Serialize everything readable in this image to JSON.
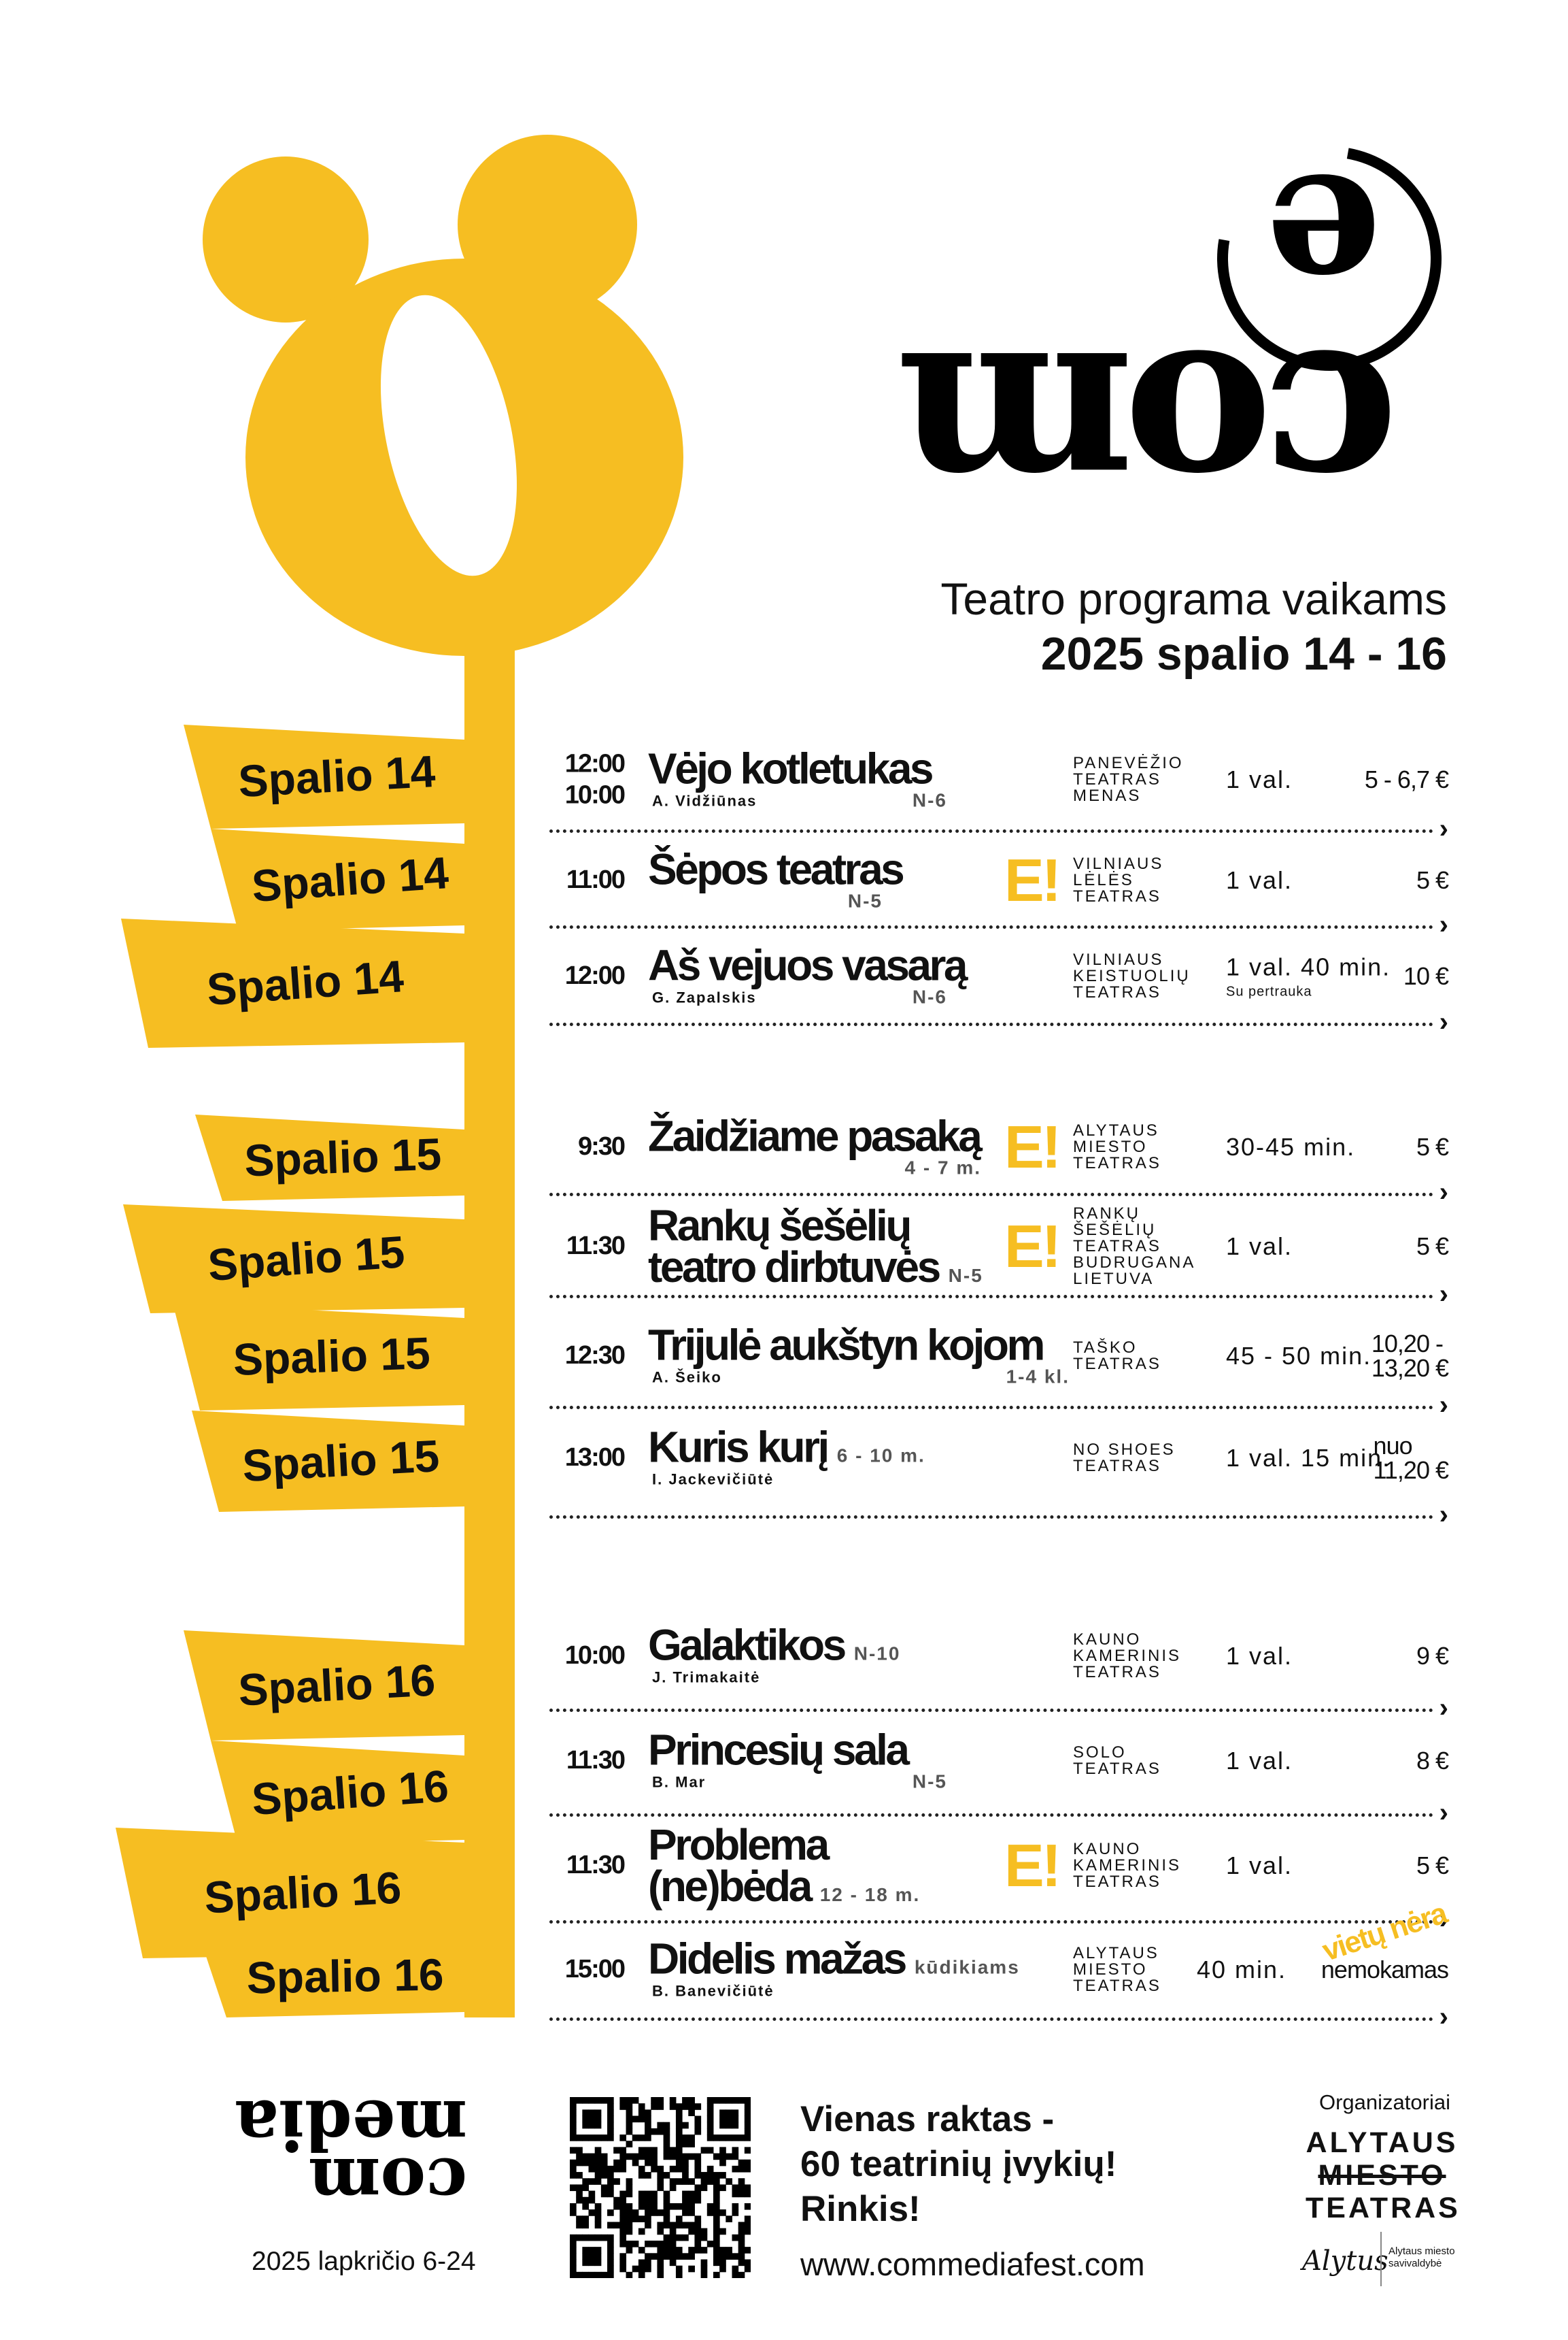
{
  "colors": {
    "accent": "#f6be22",
    "text": "#111111"
  },
  "header": {
    "logo_text": "com e",
    "subtitle": "Teatro programa vaikams",
    "dates": "2025 spalio 14 - 16"
  },
  "flags": [
    "Spalio 14",
    "Spalio 14",
    "Spalio 14",
    "Spalio 15",
    "Spalio 15",
    "Spalio 15",
    "Spalio 15",
    "Spalio 16",
    "Spalio 16",
    "Spalio 16",
    "Spalio 16"
  ],
  "events": [
    {
      "time": "12:00\n10:00",
      "title": [
        "Vėjo kotletukas"
      ],
      "author": "A. Vidžiūnas",
      "age": "N-6",
      "e_badge": false,
      "theatre": [
        "PANEVĖŽIO",
        "TEATRAS",
        "MENAS"
      ],
      "duration": "1 val.",
      "price": "5 - 6,7 €"
    },
    {
      "time": "11:00",
      "title": [
        "Šėpos teatras"
      ],
      "author": "",
      "age": "N-5",
      "e_badge": true,
      "theatre": [
        "VILNIAUS",
        "LĖLĖS",
        "TEATRAS"
      ],
      "duration": "1 val.",
      "price": "5 €"
    },
    {
      "time": "12:00",
      "title": [
        "Aš vejuos vasarą"
      ],
      "author": "G. Zapalskis",
      "age": "N-6",
      "e_badge": false,
      "theatre": [
        "VILNIAUS",
        "KEISTUOLIŲ",
        "TEATRAS"
      ],
      "duration": "1 val. 40 min.",
      "duration_note": "Su pertrauka",
      "price": "10 €"
    },
    {
      "time": "9:30",
      "title": [
        "Žaidžiame pasaką"
      ],
      "author": "",
      "age": "4 - 7 m.",
      "e_badge": true,
      "theatre": [
        "ALYTAUS",
        "MIESTO",
        "TEATRAS"
      ],
      "duration": "30-45 min.",
      "price": "5 €"
    },
    {
      "time": "11:30",
      "title": [
        "Rankų šešėlių",
        "teatro dirbtuvės"
      ],
      "author": "",
      "age": "N-5",
      "e_badge": true,
      "theatre": [
        "RANKŲ",
        "ŠEŠĖLIŲ",
        "TEATRAS",
        "BUDRUGANA",
        "LIETUVA"
      ],
      "duration": "1 val.",
      "price": "5 €"
    },
    {
      "time": "12:30",
      "title": [
        "Trijulė aukštyn kojom"
      ],
      "author": "A. Šeiko",
      "age": "1-4 kl.",
      "e_badge": false,
      "theatre": [
        "TAŠKO",
        "TEATRAS"
      ],
      "duration": "45 - 50 min.",
      "price": "10,20 -\n13,20 €"
    },
    {
      "time": "13:00",
      "title": [
        "Kuris kurį"
      ],
      "author": "I. Jackevičiūtė",
      "age": "6 - 10 m.",
      "e_badge": false,
      "theatre": [
        "NO SHOES",
        "TEATRAS"
      ],
      "duration": "1 val. 15 min.",
      "price": "nuo\n11,20 €"
    },
    {
      "time": "10:00",
      "title": [
        "Galaktikos"
      ],
      "author": "J. Trimakaitė",
      "age": "N-10",
      "e_badge": false,
      "theatre": [
        "KAUNO",
        "KAMERINIS",
        "TEATRAS"
      ],
      "duration": "1 val.",
      "price": "9 €"
    },
    {
      "time": "11:30",
      "title": [
        "Princesių sala"
      ],
      "author": "B. Mar",
      "age": "N-5",
      "e_badge": false,
      "theatre": [
        "SOLO",
        "TEATRAS"
      ],
      "duration": "1 val.",
      "price": "8 €"
    },
    {
      "time": "11:30",
      "title": [
        "Problema",
        "(ne)bėda"
      ],
      "author": "",
      "age": "12 - 18 m.",
      "e_badge": true,
      "theatre": [
        "KAUNO",
        "KAMERINIS",
        "TEATRAS"
      ],
      "duration": "1 val.",
      "price": "5 €"
    },
    {
      "time": "15:00",
      "title": [
        "Didelis mažas"
      ],
      "author": "B. Banevičiūtė",
      "age": "kūdikiams",
      "e_badge": false,
      "theatre": [
        "ALYTAUS",
        "MIESTO",
        "TEATRAS"
      ],
      "duration": "40 min.",
      "price": "nemokamas",
      "overlay": "vietų nėra"
    }
  ],
  "e_badge_label": "E!",
  "footer": {
    "festival_logo": [
      "com",
      "media"
    ],
    "festival_dates": "2025 lapkričio 6-24",
    "tagline": [
      "Vienas raktas -",
      "60 teatrinių įvykių!",
      "Rinkis!"
    ],
    "website": "www.commediafest.com",
    "organizers_label": "Organizatoriai",
    "organizer_logo": [
      "ALYTAUS",
      "MIESTO",
      "TEATRAS"
    ],
    "municipality_signature": "Alytus",
    "municipality_name": [
      "Alytaus miesto",
      "savivaldybė"
    ]
  }
}
